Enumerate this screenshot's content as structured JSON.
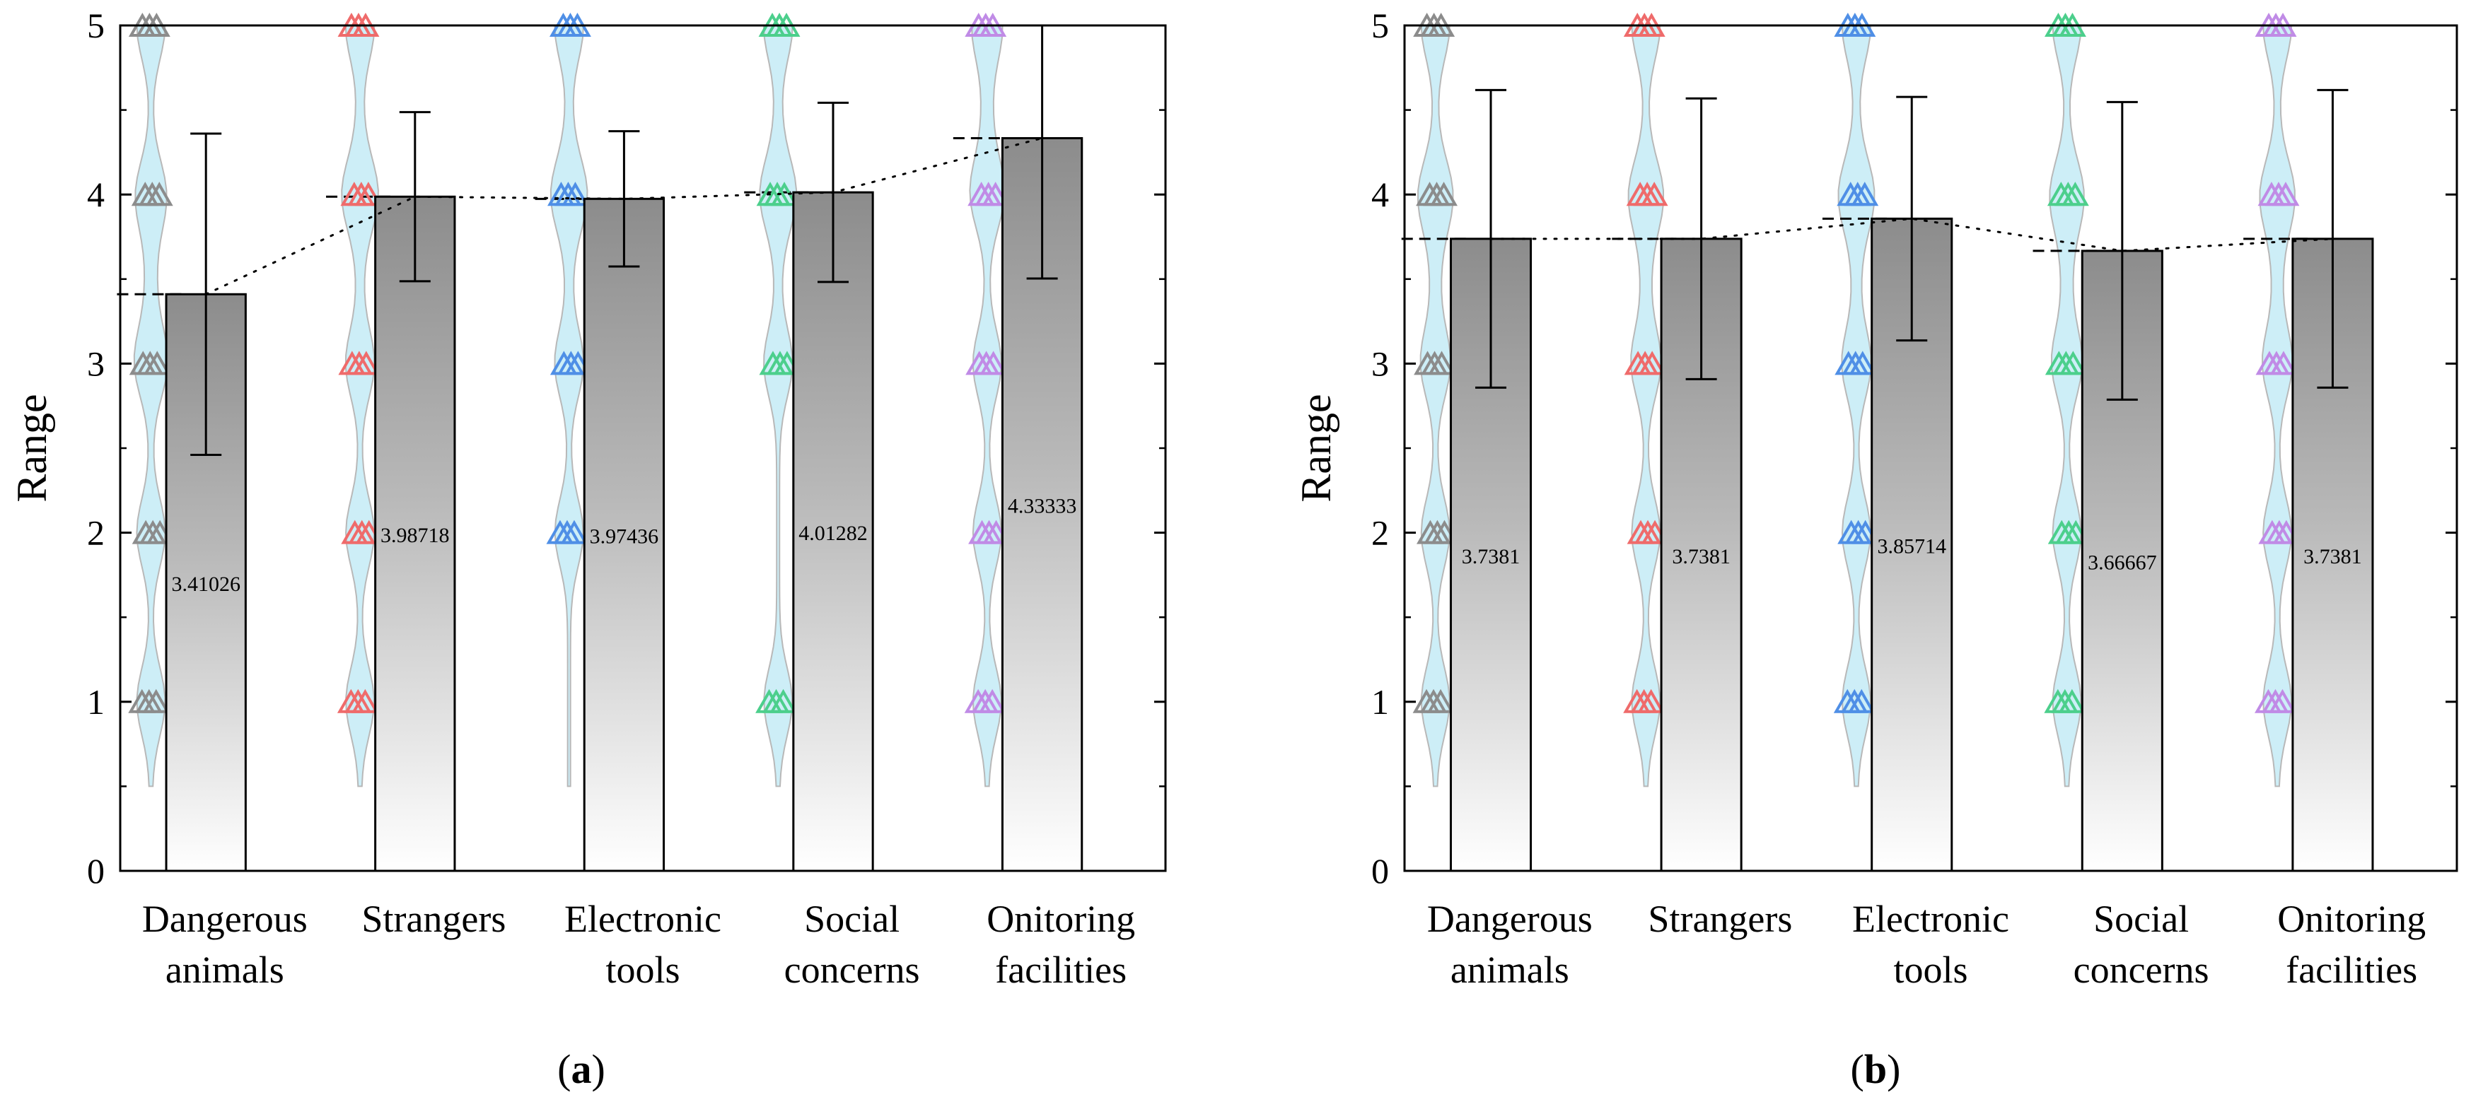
{
  "panels": [
    {
      "panel_label": "a",
      "caption_open": "(",
      "caption_close": ")"
    },
    {
      "panel_label": "b",
      "caption_open": "(",
      "caption_close": ")"
    }
  ],
  "chart_data": [
    {
      "type": "bar",
      "subtype": "bar with error bars, violin and jittered triangle points",
      "panel": "a",
      "ylabel": "Range",
      "xlabel": "",
      "ylim": [
        0,
        5
      ],
      "yticks": [
        "0",
        "1",
        "2",
        "3",
        "4",
        "5"
      ],
      "categories": [
        {
          "line1": "Dangerous",
          "line2": "animals"
        },
        {
          "line1": "Strangers",
          "line2": ""
        },
        {
          "line1": "Electronic",
          "line2": "tools"
        },
        {
          "line1": "Social",
          "line2": "concerns"
        },
        {
          "line1": "Onitoring",
          "line2": "facilities"
        }
      ],
      "values": [
        3.41026,
        3.98718,
        3.97436,
        4.01282,
        4.33333
      ],
      "value_labels": [
        "3.41026",
        "3.98718",
        "3.97436",
        "4.01282",
        "4.33333"
      ],
      "error": [
        0.95,
        0.5,
        0.4,
        0.53,
        0.83
      ],
      "point_values": [
        [
          1,
          2,
          3,
          4,
          5
        ],
        [
          1,
          2,
          3,
          4,
          5
        ],
        [
          2,
          3,
          4,
          5
        ],
        [
          1,
          3,
          4,
          5
        ],
        [
          1,
          2,
          3,
          4,
          5
        ]
      ],
      "point_colors": [
        "#8c8c8c",
        "#ef6b6b",
        "#4f8fe6",
        "#4ccf8c",
        "#c08be6"
      ],
      "violin_color": "#cdeef7",
      "trend_line": "dotted"
    },
    {
      "type": "bar",
      "subtype": "bar with error bars, violin and jittered triangle points",
      "panel": "b",
      "ylabel": "Range",
      "xlabel": "",
      "ylim": [
        0,
        5
      ],
      "yticks": [
        "0",
        "1",
        "2",
        "3",
        "4",
        "5"
      ],
      "categories": [
        {
          "line1": "Dangerous",
          "line2": "animals"
        },
        {
          "line1": "Strangers",
          "line2": ""
        },
        {
          "line1": "Electronic",
          "line2": "tools"
        },
        {
          "line1": "Social",
          "line2": "concerns"
        },
        {
          "line1": "Onitoring",
          "line2": "facilities"
        }
      ],
      "values": [
        3.7381,
        3.7381,
        3.85714,
        3.66667,
        3.7381
      ],
      "value_labels": [
        "3.7381",
        "3.7381",
        "3.85714",
        "3.66667",
        "3.7381"
      ],
      "error": [
        0.88,
        0.83,
        0.72,
        0.88,
        0.88
      ],
      "point_values": [
        [
          1,
          2,
          3,
          4,
          5
        ],
        [
          1,
          2,
          3,
          4,
          5
        ],
        [
          1,
          2,
          3,
          4,
          5
        ],
        [
          1,
          2,
          3,
          4,
          5
        ],
        [
          1,
          2,
          3,
          4,
          5
        ]
      ],
      "point_colors": [
        "#8c8c8c",
        "#ef6b6b",
        "#4f8fe6",
        "#4ccf8c",
        "#c08be6"
      ],
      "violin_color": "#cdeef7",
      "trend_line": "dotted"
    }
  ]
}
